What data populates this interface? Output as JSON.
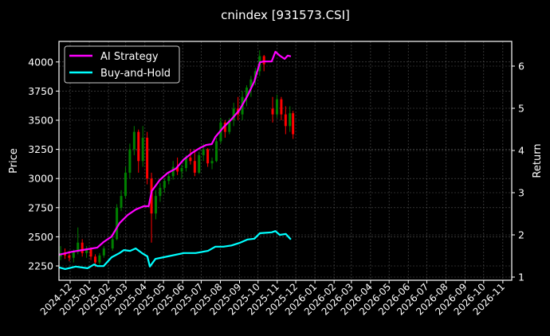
{
  "chart_data": {
    "type": "line",
    "title": "cnindex [931573.CSI]",
    "ylabel": "Price",
    "y2label": "Return",
    "ylim": [
      2150,
      4200
    ],
    "y2lim": [
      0.95,
      6.6
    ],
    "xlim": [
      "2024-11-13",
      "2026-11-25"
    ],
    "yticks": [
      2250,
      2500,
      2750,
      3000,
      3250,
      3500,
      3750,
      4000
    ],
    "y2ticks": [
      1,
      2,
      3,
      4,
      5,
      6
    ],
    "xticks": [
      "2024-12",
      "2025-01",
      "2025-02",
      "2025-03",
      "2025-04",
      "2025-05",
      "2025-06",
      "2025-07",
      "2025-08",
      "2025-09",
      "2025-10",
      "2025-11",
      "2025-12",
      "2026-01",
      "2026-02",
      "2026-03",
      "2026-04",
      "2026-05",
      "2026-06",
      "2026-07",
      "2026-08",
      "2026-09",
      "2026-10",
      "2026-11"
    ],
    "grid": true,
    "legend": "top-left",
    "colors": {
      "background": "#000000",
      "up": "#008000",
      "down": "#ff0000",
      "strategy": "#ff00ff",
      "buyhold": "#00ffff"
    },
    "price_candles": {
      "columns": [
        "date",
        "open",
        "high",
        "low",
        "close"
      ],
      "rows": [
        [
          "2024-11-13",
          2330,
          2420,
          2300,
          2360
        ],
        [
          "2024-11-20",
          2360,
          2400,
          2310,
          2340
        ],
        [
          "2024-11-27",
          2340,
          2380,
          2290,
          2320
        ],
        [
          "2024-12-04",
          2320,
          2390,
          2280,
          2370
        ],
        [
          "2024-12-11",
          2370,
          2580,
          2350,
          2450
        ],
        [
          "2024-12-18",
          2450,
          2480,
          2330,
          2360
        ],
        [
          "2024-12-25",
          2360,
          2420,
          2320,
          2400
        ],
        [
          "2025-01-01",
          2400,
          2410,
          2300,
          2330
        ],
        [
          "2025-01-08",
          2330,
          2350,
          2240,
          2280
        ],
        [
          "2025-01-15",
          2280,
          2360,
          2260,
          2340
        ],
        [
          "2025-01-22",
          2340,
          2420,
          2320,
          2400
        ],
        [
          "2025-02-05",
          2400,
          2500,
          2380,
          2480
        ],
        [
          "2025-02-12",
          2480,
          2780,
          2470,
          2750
        ],
        [
          "2025-02-19",
          2750,
          2900,
          2720,
          2850
        ],
        [
          "2025-02-26",
          2850,
          3100,
          2830,
          3050
        ],
        [
          "2025-03-05",
          3050,
          3300,
          3000,
          3250
        ],
        [
          "2025-03-12",
          3250,
          3450,
          3200,
          3400
        ],
        [
          "2025-03-19",
          3400,
          3420,
          3050,
          3150
        ],
        [
          "2025-03-26",
          3150,
          3450,
          3100,
          3350
        ],
        [
          "2025-04-02",
          3350,
          3400,
          2950,
          3000
        ],
        [
          "2025-04-09",
          3000,
          3050,
          2450,
          2700
        ],
        [
          "2025-04-16",
          2700,
          2900,
          2650,
          2850
        ],
        [
          "2025-04-23",
          2850,
          2960,
          2800,
          2920
        ],
        [
          "2025-04-30",
          2920,
          3000,
          2880,
          2980
        ],
        [
          "2025-05-07",
          2980,
          3050,
          2950,
          3020
        ],
        [
          "2025-05-14",
          3020,
          3150,
          2990,
          3100
        ],
        [
          "2025-05-21",
          3100,
          3180,
          3030,
          3060
        ],
        [
          "2025-05-28",
          3060,
          3120,
          3000,
          3090
        ],
        [
          "2025-06-04",
          3090,
          3200,
          3060,
          3180
        ],
        [
          "2025-06-11",
          3180,
          3250,
          3120,
          3150
        ],
        [
          "2025-06-18",
          3150,
          3250,
          3020,
          3050
        ],
        [
          "2025-06-25",
          3050,
          3230,
          3040,
          3200
        ],
        [
          "2025-07-02",
          3200,
          3300,
          3150,
          3250
        ],
        [
          "2025-07-09",
          3250,
          3260,
          3100,
          3130
        ],
        [
          "2025-07-16",
          3130,
          3180,
          3080,
          3150
        ],
        [
          "2025-07-23",
          3150,
          3350,
          3140,
          3320
        ],
        [
          "2025-07-30",
          3320,
          3520,
          3300,
          3480
        ],
        [
          "2025-08-06",
          3480,
          3500,
          3350,
          3400
        ],
        [
          "2025-08-13",
          3400,
          3520,
          3380,
          3500
        ],
        [
          "2025-08-20",
          3500,
          3650,
          3450,
          3600
        ],
        [
          "2025-08-27",
          3600,
          3700,
          3500,
          3550
        ],
        [
          "2025-09-03",
          3550,
          3750,
          3500,
          3700
        ],
        [
          "2025-09-10",
          3700,
          3800,
          3620,
          3780
        ],
        [
          "2025-09-17",
          3780,
          3880,
          3700,
          3850
        ],
        [
          "2025-09-24",
          3850,
          3950,
          3800,
          3920
        ],
        [
          "2025-10-01",
          3920,
          4100,
          3880,
          4050
        ],
        [
          "2025-10-08",
          4050,
          4060,
          3920,
          3980
        ],
        [
          "2025-10-22",
          3600,
          3700,
          3480,
          3550
        ],
        [
          "2025-10-29",
          3550,
          3720,
          3520,
          3680
        ],
        [
          "2025-11-05",
          3680,
          3700,
          3500,
          3550
        ],
        [
          "2025-11-12",
          3550,
          3620,
          3380,
          3450
        ],
        [
          "2025-11-19",
          3450,
          3620,
          3400,
          3560
        ],
        [
          "2025-11-24",
          3560,
          3580,
          3340,
          3380
        ]
      ]
    },
    "series": [
      {
        "name": "AI Strategy",
        "axis": "right",
        "x": [
          "2024-11-13",
          "2024-12-04",
          "2024-12-29",
          "2025-01-14",
          "2025-01-24",
          "2025-02-06",
          "2025-02-19",
          "2025-03-04",
          "2025-03-17",
          "2025-03-30",
          "2025-04-07",
          "2025-04-12",
          "2025-04-25",
          "2025-05-08",
          "2025-05-21",
          "2025-06-03",
          "2025-06-16",
          "2025-06-29",
          "2025-07-09",
          "2025-07-18",
          "2025-07-24",
          "2025-08-06",
          "2025-08-19",
          "2025-09-01",
          "2025-09-14",
          "2025-09-25",
          "2025-10-04",
          "2025-10-10",
          "2025-10-23",
          "2025-10-29",
          "2025-11-05",
          "2025-11-13",
          "2025-11-18",
          "2025-11-23"
        ],
        "values": [
          1.53,
          1.6,
          1.66,
          1.7,
          1.83,
          1.96,
          2.28,
          2.47,
          2.6,
          2.68,
          2.68,
          3.04,
          3.3,
          3.47,
          3.57,
          3.79,
          3.94,
          4.06,
          4.13,
          4.15,
          4.32,
          4.55,
          4.74,
          4.96,
          5.3,
          5.64,
          6.09,
          6.11,
          6.11,
          6.34,
          6.25,
          6.17,
          6.25,
          6.23
        ]
      },
      {
        "name": "Buy-and-Hold",
        "axis": "right",
        "x": [
          "2024-11-13",
          "2024-11-23",
          "2024-12-10",
          "2024-12-29",
          "2025-01-09",
          "2025-01-14",
          "2025-01-24",
          "2025-02-06",
          "2025-02-19",
          "2025-02-26",
          "2025-03-08",
          "2025-03-17",
          "2025-03-27",
          "2025-04-05",
          "2025-04-09",
          "2025-04-18",
          "2025-05-08",
          "2025-06-03",
          "2025-06-22",
          "2025-07-12",
          "2025-07-24",
          "2025-08-06",
          "2025-08-19",
          "2025-09-01",
          "2025-09-14",
          "2025-09-25",
          "2025-10-04",
          "2025-10-23",
          "2025-10-29",
          "2025-11-05",
          "2025-11-15",
          "2025-11-23"
        ],
        "values": [
          1.23,
          1.19,
          1.25,
          1.21,
          1.3,
          1.26,
          1.26,
          1.47,
          1.57,
          1.64,
          1.62,
          1.68,
          1.57,
          1.49,
          1.25,
          1.43,
          1.49,
          1.57,
          1.57,
          1.62,
          1.72,
          1.72,
          1.75,
          1.81,
          1.89,
          1.91,
          2.04,
          2.06,
          2.09,
          2.0,
          2.02,
          1.89
        ]
      }
    ]
  }
}
